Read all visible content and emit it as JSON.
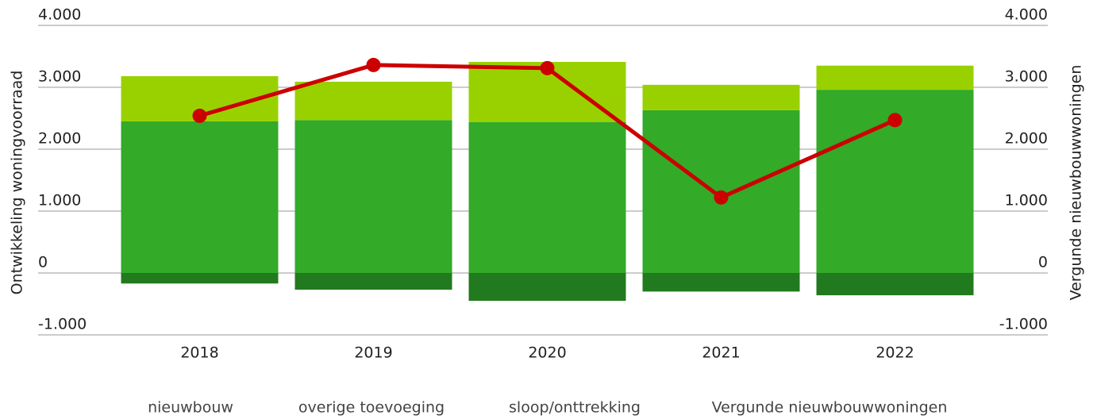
{
  "chart_data": {
    "type": "bar",
    "categories": [
      "2018",
      "2019",
      "2020",
      "2021",
      "2022"
    ],
    "series": [
      {
        "name": "nieuwbouw",
        "color": "#33aa28",
        "values": [
          2450,
          2470,
          2440,
          2630,
          2960
        ]
      },
      {
        "name": "overige toevoeging",
        "color": "#99d100",
        "values": [
          730,
          620,
          970,
          410,
          390
        ]
      },
      {
        "name": "sloop/onttrekking",
        "color": "#217a1e",
        "values": [
          -170,
          -270,
          -450,
          -300,
          -360
        ]
      },
      {
        "name": "Vergunde nieuwbouwwoningen",
        "color": "#cc0000",
        "type": "line",
        "axis": "y2",
        "values": [
          2540,
          3360,
          3310,
          1220,
          2470
        ]
      }
    ],
    "ylabel": "Ontwikkeling woningvoorraad",
    "y2label": "Vergunde nieuwbouwwoningen",
    "ylim": [
      -1000,
      4000
    ],
    "yticks": [
      {
        "value": -1000,
        "label": "-1.000"
      },
      0,
      {
        "value": 1000,
        "label": "1.000"
      },
      {
        "value": 2000,
        "label": "2.000"
      },
      {
        "value": 3000,
        "label": "3.000"
      },
      {
        "value": 4000,
        "label": "4.000"
      }
    ],
    "y2lim": [
      -1000,
      4000
    ],
    "y2ticks": [
      {
        "value": -1000,
        "label": "-1.000"
      },
      0,
      {
        "value": 1000,
        "label": "1.000"
      },
      {
        "value": 2000,
        "label": "2.000"
      },
      {
        "value": 3000,
        "label": "3.000"
      },
      {
        "value": 4000,
        "label": "4.000"
      }
    ],
    "grid": true,
    "legend": "bottom"
  }
}
